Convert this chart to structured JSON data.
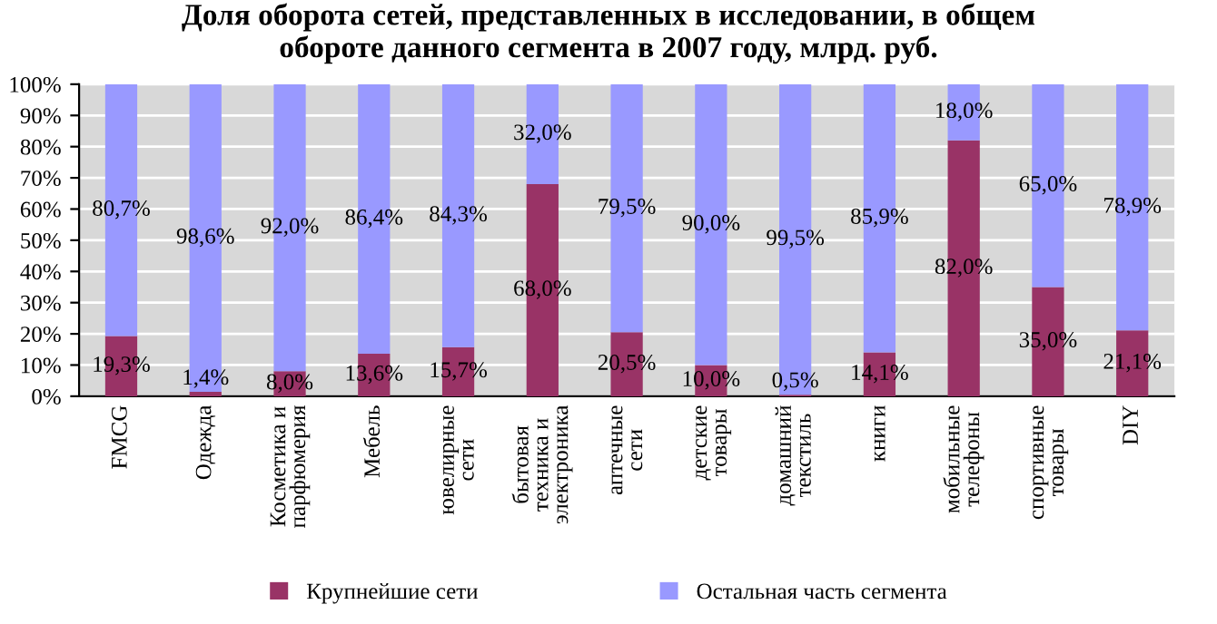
{
  "chart_data": {
    "type": "bar",
    "stacked": true,
    "title": "Доля оборота сетей, представленных в исследовании, в общем\nобороте данного сегмента в 2007 году, млрд. руб.",
    "categories": [
      "FMCG",
      "Одежда",
      "Косметика и\nпарфюмерия",
      "Мебель",
      "ювелирные\nсети",
      "бытовая\nтехника и\nэлектроника",
      "аптечные\nсети",
      "детские\nтовары",
      "домашний\nтекстиль",
      "книги",
      "мобильные\nтелефоны",
      "спортивные\nтовары",
      "DIY"
    ],
    "series": [
      {
        "name": "Крупнейшие сети",
        "color": "#993366",
        "values": [
          19.3,
          1.4,
          8.0,
          13.6,
          15.7,
          68.0,
          20.5,
          10.0,
          0.5,
          14.1,
          82.0,
          35.0,
          21.1
        ],
        "value_labels": [
          "19,3%",
          "1,4%",
          "8,0%",
          "13,6%",
          "15,7%",
          "68,0%",
          "20,5%",
          "10,0%",
          "0,5%",
          "14,1%",
          "82,0%",
          "35,0%",
          "21,1%"
        ]
      },
      {
        "name": "Остальная часть сегмента",
        "color": "#9999ff",
        "values": [
          80.7,
          98.6,
          92.0,
          86.4,
          84.3,
          32.0,
          79.5,
          90.0,
          99.5,
          85.9,
          18.0,
          65.0,
          78.9
        ],
        "value_labels": [
          "80,7%",
          "98,6%",
          "92,0%",
          "86,4%",
          "84,3%",
          "32,0%",
          "79,5%",
          "90,0%",
          "99,5%",
          "85,9%",
          "18,0%",
          "65,0%",
          "78,9%"
        ]
      }
    ],
    "ylim": [
      0,
      100
    ],
    "yticks": [
      {
        "value": 0,
        "label": "0%"
      },
      {
        "value": 10,
        "label": "10%"
      },
      {
        "value": 20,
        "label": "20%"
      },
      {
        "value": 30,
        "label": "30%"
      },
      {
        "value": 40,
        "label": "40%"
      },
      {
        "value": 50,
        "label": "50%"
      },
      {
        "value": 60,
        "label": "60%"
      },
      {
        "value": 70,
        "label": "70%"
      },
      {
        "value": 80,
        "label": "80%"
      },
      {
        "value": 90,
        "label": "90%"
      },
      {
        "value": 100,
        "label": "100%"
      }
    ],
    "grid": "y",
    "legend": "bottom"
  }
}
